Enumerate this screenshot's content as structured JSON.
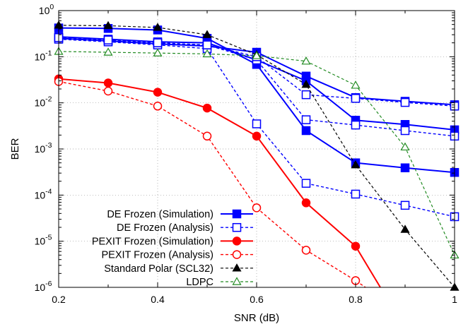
{
  "chart_data": {
    "type": "line",
    "title": "",
    "xlabel": "SNR (dB)",
    "ylabel": "BER",
    "xlim": [
      0.2,
      1.0
    ],
    "ylim": [
      1e-06,
      1
    ],
    "yscale": "log",
    "grid": true,
    "legend_position": "bottom-left",
    "x_ticks": [
      "0.2",
      "0.4",
      "0.6",
      "0.8",
      "1"
    ],
    "y_ticks": [
      {
        "mantissa": "10",
        "exponent": "0"
      },
      {
        "mantissa": "10",
        "exponent": "-1"
      },
      {
        "mantissa": "10",
        "exponent": "-2"
      },
      {
        "mantissa": "10",
        "exponent": "-3"
      },
      {
        "mantissa": "10",
        "exponent": "-4"
      },
      {
        "mantissa": "10",
        "exponent": "-5"
      },
      {
        "mantissa": "10",
        "exponent": "-6"
      }
    ],
    "series": [
      {
        "name": "DE Frozen (Simulation)",
        "color": "#0000ff",
        "dash": "solid",
        "marker": "square-filled",
        "width": 2,
        "lines": [
          {
            "x": [
              0.2,
              0.3,
              0.4,
              0.5,
              0.6,
              0.7,
              0.8,
              0.9,
              1.0
            ],
            "y": [
              0.42,
              0.41,
              0.38,
              0.25,
              0.068,
              0.0025,
              0.0005,
              0.00039,
              0.00031
            ]
          },
          {
            "x": [
              0.2,
              0.3,
              0.4,
              0.5,
              0.6,
              0.7,
              0.8,
              0.9,
              1.0
            ],
            "y": [
              0.27,
              0.24,
              0.21,
              0.2,
              0.085,
              0.03,
              0.0042,
              0.0034,
              0.0026
            ]
          },
          {
            "x": [
              0.2,
              0.3,
              0.4,
              0.5,
              0.6,
              0.7,
              0.8,
              0.9,
              1.0
            ],
            "y": [
              0.25,
              0.22,
              0.19,
              0.17,
              0.125,
              0.038,
              0.013,
              0.0108,
              0.0091
            ]
          }
        ]
      },
      {
        "name": "DE Frozen (Analysis)",
        "color": "#0000ff",
        "dash": "dashed",
        "marker": "square-open",
        "width": 1.4,
        "lines": [
          {
            "x": [
              0.2,
              0.3,
              0.4,
              0.5,
              0.6,
              0.7,
              0.8,
              0.9,
              1.0
            ],
            "y": [
              0.24,
              0.21,
              0.18,
              0.15,
              0.0035,
              0.00018,
              0.000105,
              6e-05,
              3.4e-05
            ]
          },
          {
            "x": [
              0.2,
              0.3,
              0.4,
              0.5,
              0.6,
              0.7,
              0.8,
              0.9,
              1.0
            ],
            "y": [
              0.26,
              0.23,
              0.2,
              0.18,
              0.085,
              0.0043,
              0.0033,
              0.0025,
              0.0019
            ]
          },
          {
            "x": [
              0.2,
              0.3,
              0.4,
              0.5,
              0.6,
              0.7,
              0.8,
              0.9,
              1.0
            ],
            "y": [
              0.26,
              0.23,
              0.2,
              0.18,
              0.1,
              0.015,
              0.0125,
              0.0102,
              0.0085
            ]
          }
        ]
      },
      {
        "name": "PEXIT Frozen (Simulation)",
        "color": "#ff0000",
        "dash": "solid",
        "marker": "circle-filled",
        "width": 2,
        "lines": [
          {
            "x": [
              0.2,
              0.3,
              0.4,
              0.5,
              0.6,
              0.7,
              0.8,
              0.85
            ],
            "y": [
              0.033,
              0.027,
              0.017,
              0.0077,
              0.0019,
              6.8e-05,
              7.8e-06,
              1e-06
            ],
            "marker_count": 7
          }
        ]
      },
      {
        "name": "PEXIT Frozen (Analysis)",
        "color": "#ff0000",
        "dash": "dashed",
        "marker": "circle-open",
        "width": 1.4,
        "lines": [
          {
            "x": [
              0.2,
              0.3,
              0.4,
              0.5,
              0.6,
              0.7,
              0.8,
              0.82
            ],
            "y": [
              0.029,
              0.018,
              0.0085,
              0.0019,
              5.3e-05,
              6.4e-06,
              1.4e-06,
              1e-06
            ],
            "marker_count": 7
          }
        ]
      },
      {
        "name": "Standard Polar (SCL32)",
        "color": "#000000",
        "dash": "dashed",
        "marker": "triangle-filled",
        "width": 1.2,
        "lines": [
          {
            "x": [
              0.2,
              0.3,
              0.4,
              0.5,
              0.6,
              0.7,
              0.8,
              0.9,
              1.0
            ],
            "y": [
              0.48,
              0.47,
              0.43,
              0.3,
              0.11,
              0.025,
              0.00045,
              1.8e-05,
              1e-06
            ]
          }
        ]
      },
      {
        "name": "LDPC",
        "color": "#228b22",
        "dash": "dashed",
        "marker": "triangle-open",
        "width": 1.2,
        "lines": [
          {
            "x": [
              0.2,
              0.3,
              0.4,
              0.5,
              0.6,
              0.7,
              0.8,
              0.9,
              1.0
            ],
            "y": [
              0.13,
              0.125,
              0.12,
              0.115,
              0.105,
              0.08,
              0.024,
              0.0011,
              5e-06
            ]
          }
        ]
      }
    ]
  }
}
